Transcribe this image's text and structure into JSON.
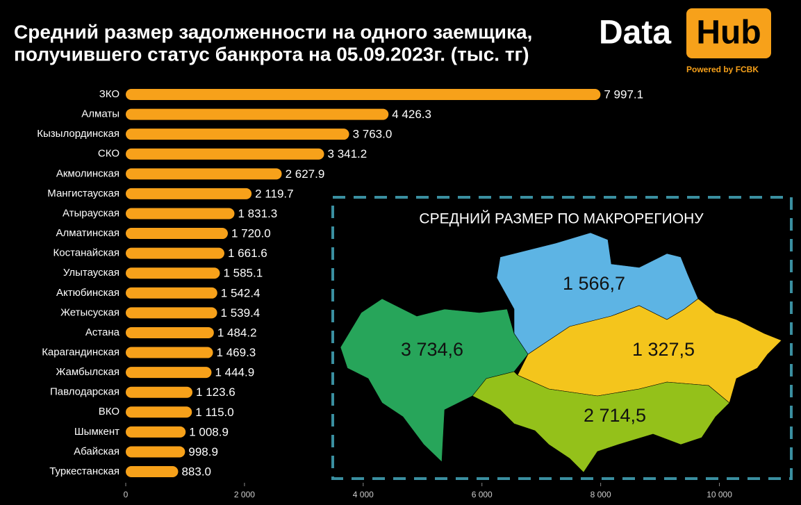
{
  "chart_data": {
    "type": "bar",
    "title": [
      "Средний размер задолженности на одного заемщика,",
      "получившего статус банкрота на 05.09.2023г. (тыс. тг)"
    ],
    "categories": [
      "ЗКО",
      "Алматы",
      "Кызылординская",
      "СКО",
      "Акмолинская",
      "Мангистауская",
      "Атырауская",
      "Алматинская",
      "Костанайская",
      "Улытауская",
      "Актюбинская",
      "Жетысуская",
      "Астана",
      "Карагандинская",
      "Жамбылская",
      "Павлодарская",
      "ВКО",
      "Шымкент",
      "Абайская",
      "Туркестанская"
    ],
    "values": [
      7997.1,
      4426.3,
      3763.0,
      3341.2,
      2627.9,
      2119.7,
      1831.3,
      1720.0,
      1661.6,
      1585.1,
      1542.4,
      1539.4,
      1484.2,
      1469.3,
      1444.9,
      1123.6,
      1115.0,
      1008.9,
      998.9,
      883.0
    ],
    "value_labels": [
      "7 997.1",
      "4 426.3",
      "3 763.0",
      "3 341.2",
      "2 627.9",
      "2 119.7",
      "1 831.3",
      "1 720.0",
      "1 661.6",
      "1 585.1",
      "1 542.4",
      "1 539.4",
      "1 484.2",
      "1 469.3",
      "1 444.9",
      "1 123.6",
      "1 115.0",
      "1 008.9",
      "998.9",
      "883.0"
    ],
    "color": "#f7a11a",
    "xlim": [
      0,
      11000
    ],
    "xticks": [
      0,
      {
        "value": 2000,
        "label": "2 000"
      },
      {
        "value": 4000,
        "label": "4 000"
      },
      {
        "value": 6000,
        "label": "6 000"
      },
      {
        "value": 8000,
        "label": "8 000"
      },
      {
        "value": 10000,
        "label": "10 000"
      }
    ],
    "inset": {
      "title": "СРЕДНИЙ РАЗМЕР ПО МАКРОРЕГИОНУ",
      "values": [
        1566.7,
        3734.6,
        1327.5,
        2714.5
      ],
      "value_labels": [
        "1 566,7",
        "3 734,6",
        "1 327,5",
        "2 714,5"
      ],
      "colors": [
        "#5db4e4",
        "#27a55a",
        "#f4c51c",
        "#94c11a"
      ]
    }
  },
  "logo": {
    "word": "Data",
    "badge": "Hub",
    "tagline": "Powered by FCBK"
  }
}
